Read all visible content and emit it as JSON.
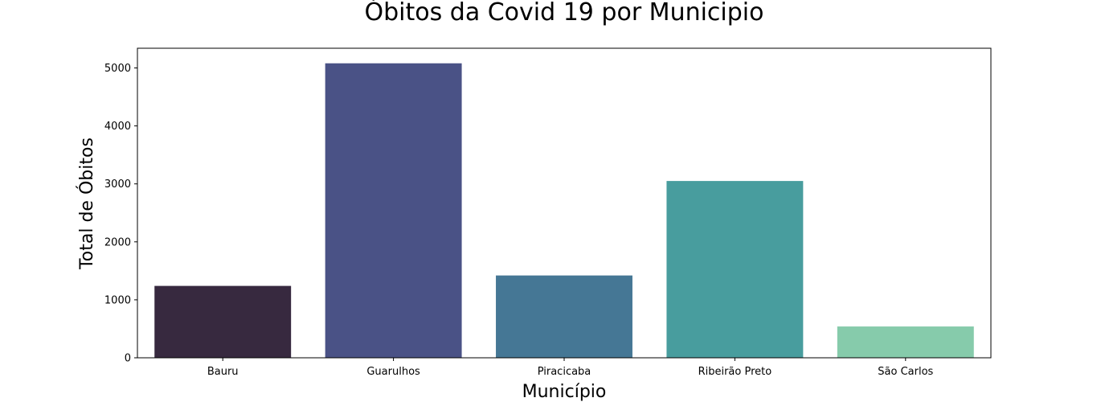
{
  "chart_data": {
    "type": "bar",
    "title": "Óbitos da Covid 19 por Municipio",
    "xlabel": "Município",
    "ylabel": "Total de Óbitos",
    "categories": [
      "Bauru",
      "Guarulhos",
      "Piracicaba",
      "Ribeirão Preto",
      "São Carlos"
    ],
    "values": [
      1240,
      5080,
      1420,
      3050,
      540
    ],
    "colors": [
      "#37293f",
      "#4a5286",
      "#457795",
      "#489d9e",
      "#86cbab"
    ],
    "ylim": [
      0,
      5340
    ],
    "yticks": [
      0,
      1000,
      2000,
      3000,
      4000,
      5000
    ],
    "grid": false,
    "legend": "none"
  }
}
